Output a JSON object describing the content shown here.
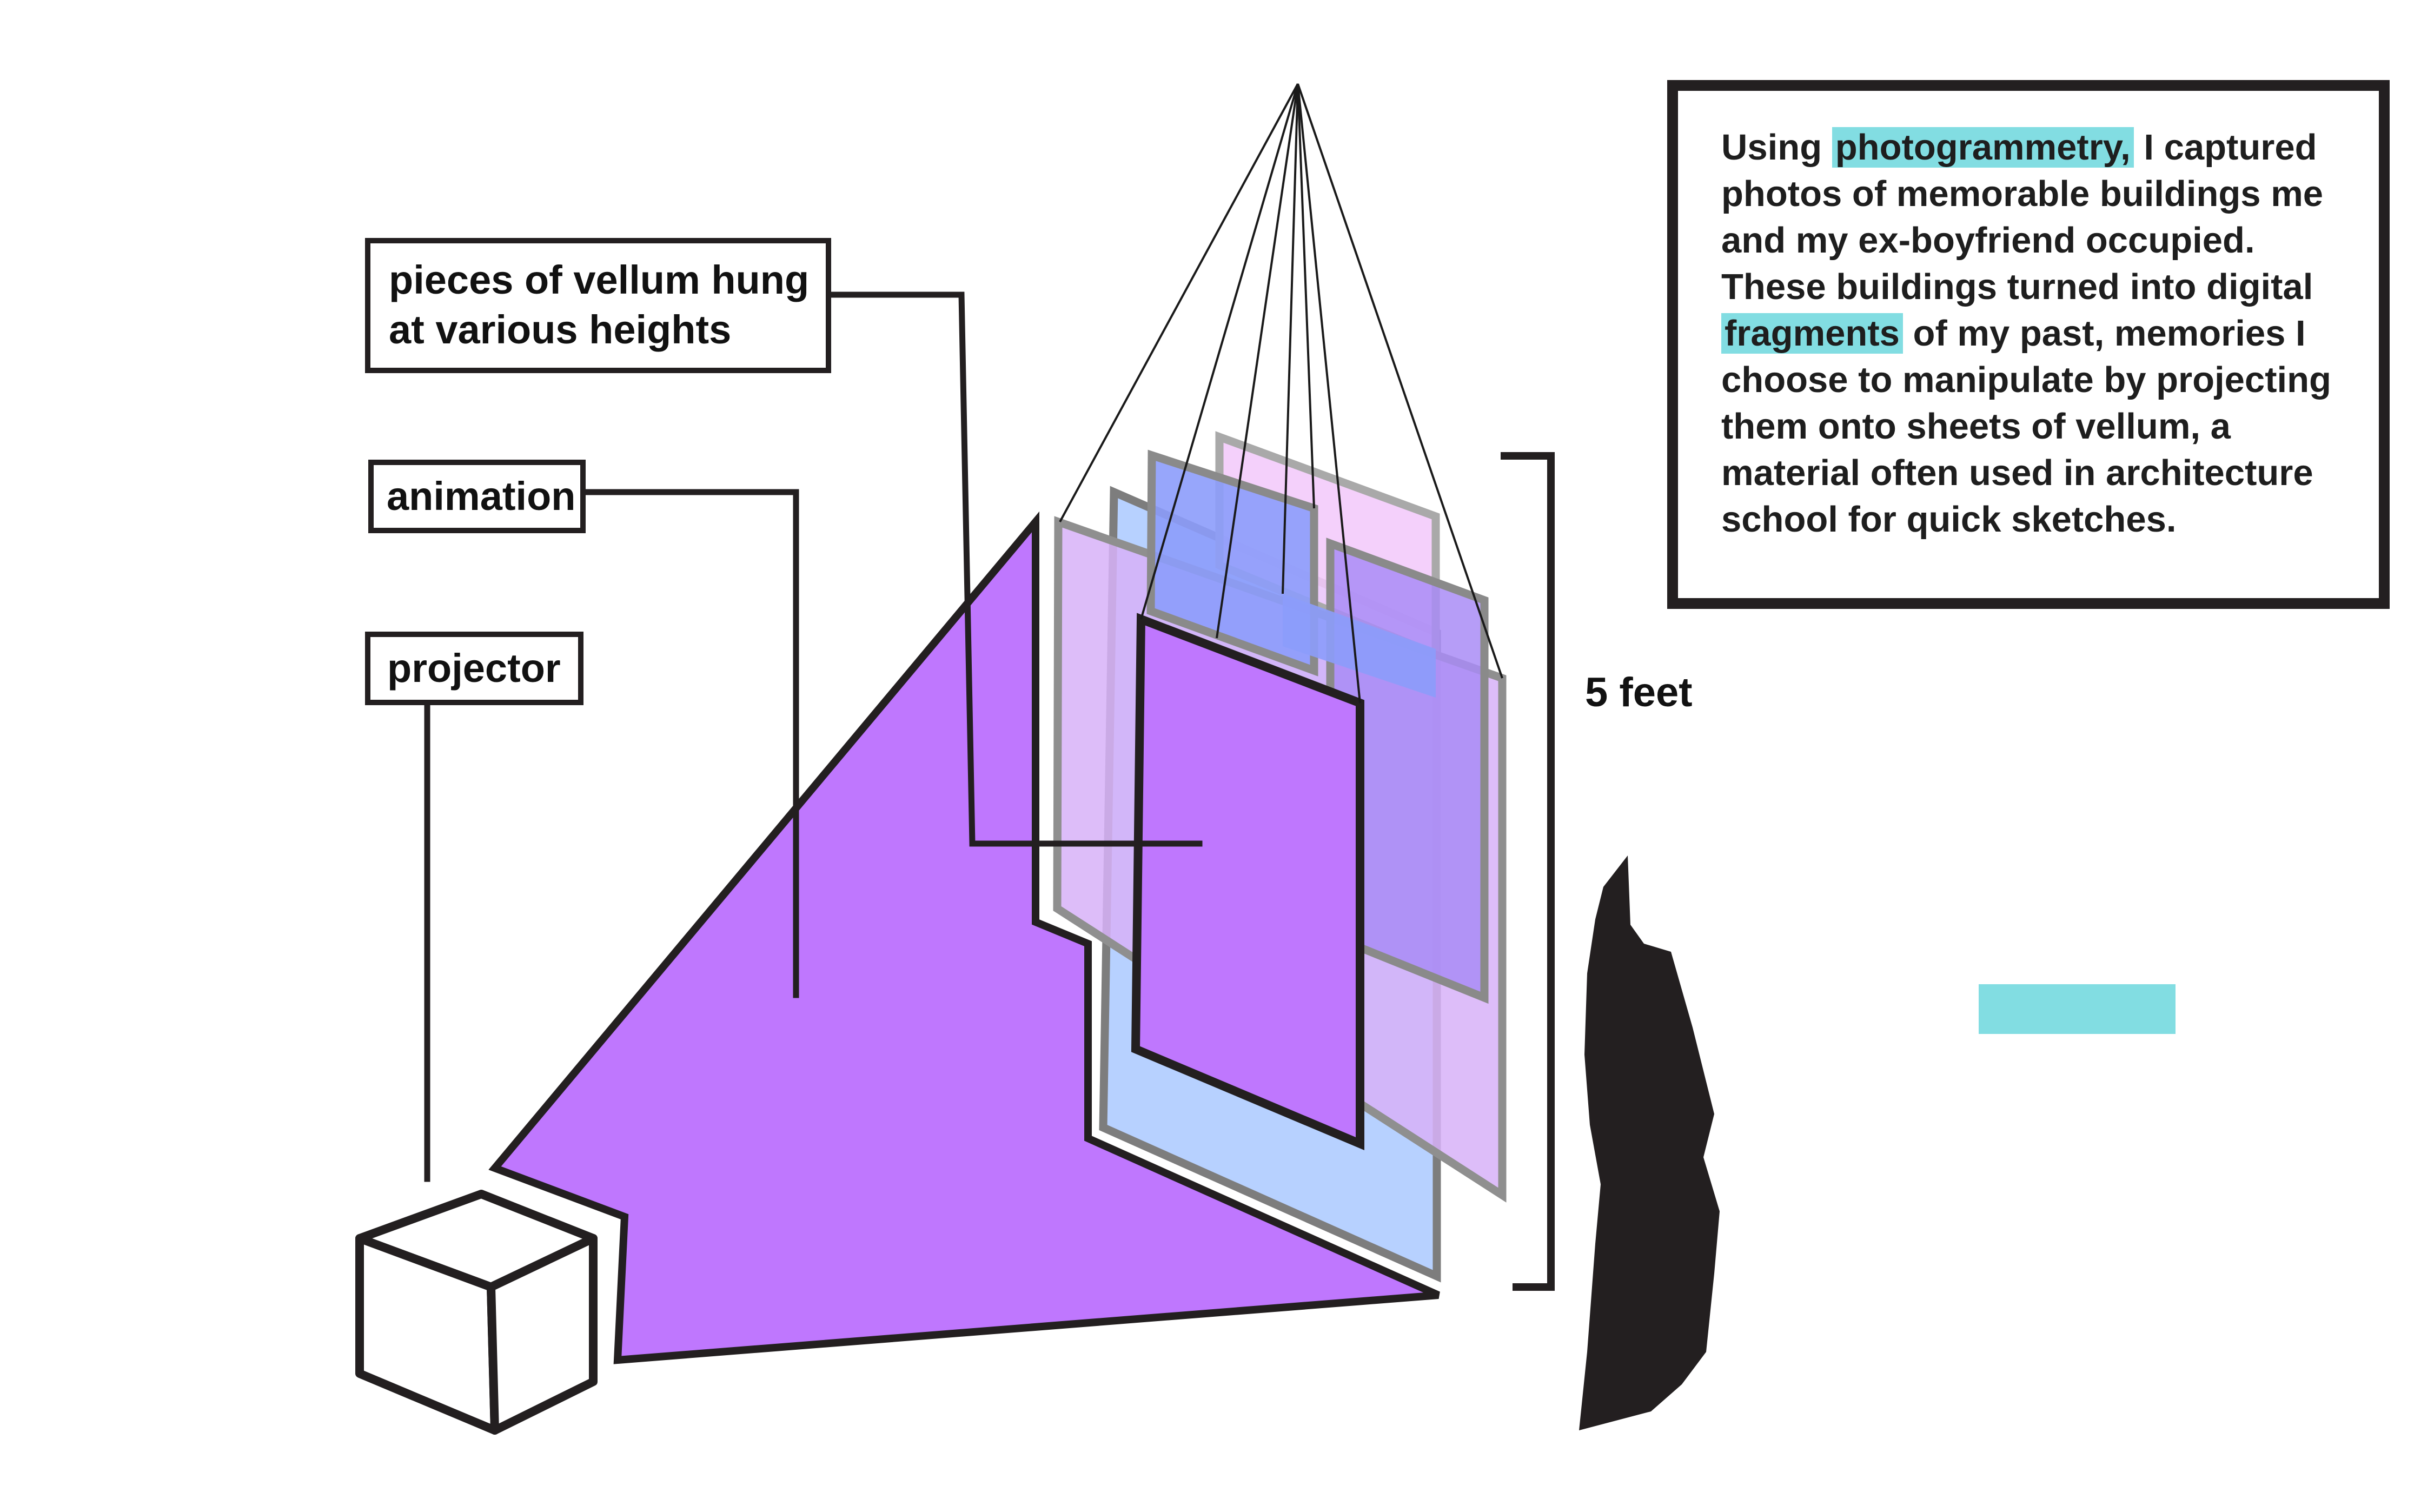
{
  "labels": {
    "vellum": [
      "pieces of vellum hung",
      "at various heights"
    ],
    "animation": "animation",
    "projector": "projector"
  },
  "dimension": {
    "height_label": "5 feet"
  },
  "description": {
    "before_1": "Using ",
    "highlight_1": "photogrammetry,",
    "after_1": " I captured photos of memorable buildings me and my ex-boyfriend occupied. These buildings turned into digital ",
    "highlight_2": "fragments",
    "after_2": " of my past, memories I choose to manipulate by projecting them onto sheets of vellum, a material often used in architecture school for quick sketches."
  },
  "colors": {
    "projection_purple": "#bf77fe",
    "vellum_lavender": "#d7b2f8",
    "vellum_blue": "#b3cfff",
    "vellum_pink": "#f3cbfb",
    "vellum_periwinkle": "#8c9cfb",
    "highlight_cyan": "#82dde2",
    "outline": "#231f20",
    "person_silhouette": "#231f20"
  }
}
